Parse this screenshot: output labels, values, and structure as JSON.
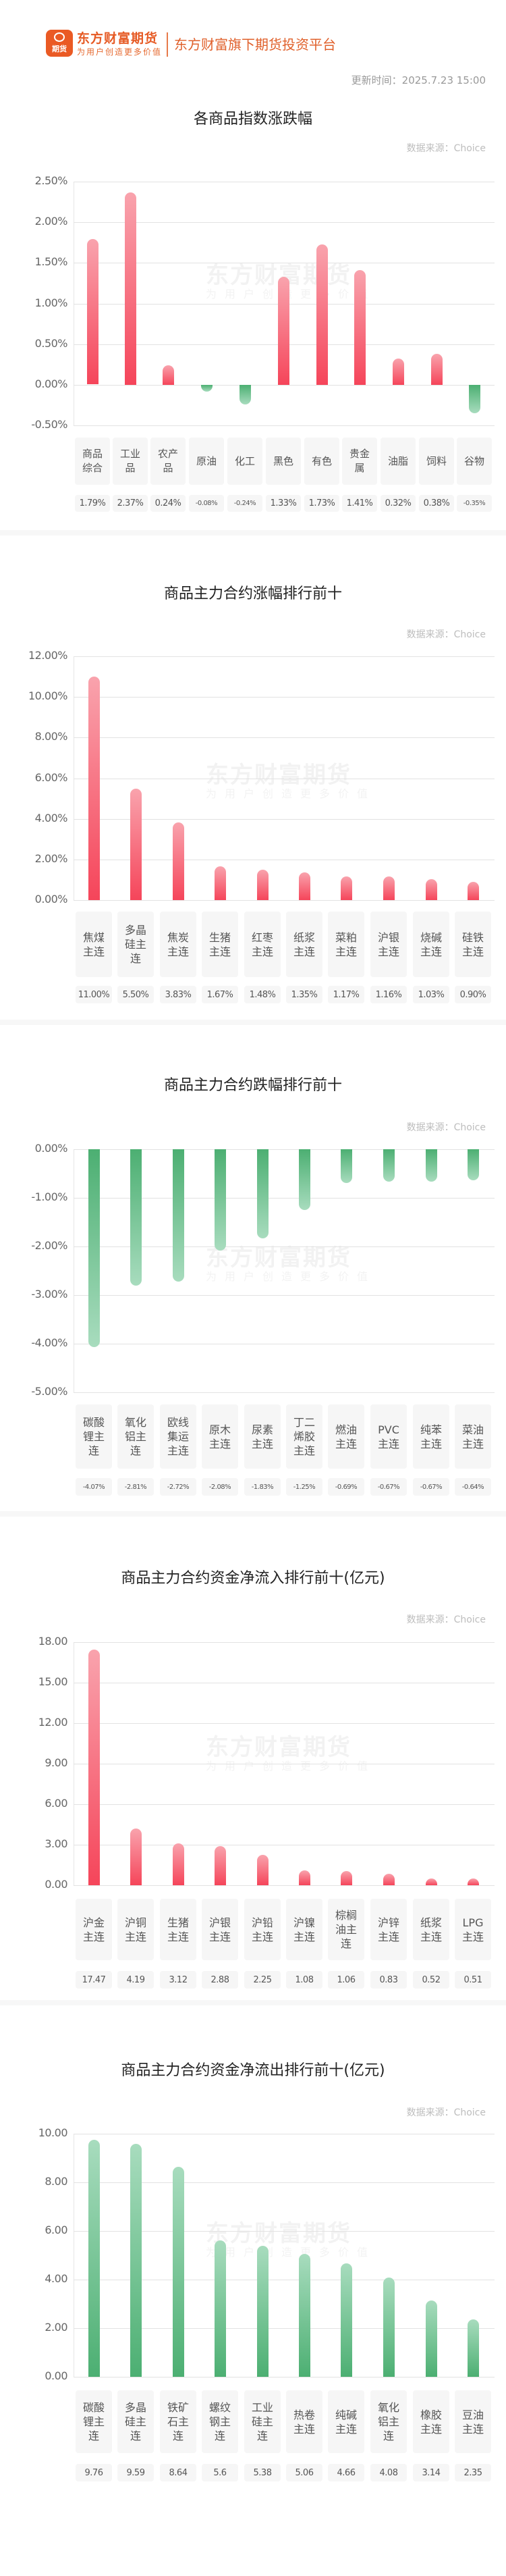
{
  "header": {
    "logo_badge": "期货",
    "brand_name": "东方财富期货",
    "brand_slogan": "为用户创造更多价值",
    "platform_text": "东方财富旗下期货投资平台",
    "update_time": "更新时间：2025.7.23 15:00"
  },
  "watermark": {
    "main": "东方财富期货",
    "sub": "为用户创造更多价值"
  },
  "colors": {
    "up": "#f5455a",
    "down": "#4caf72",
    "brand": "#ea5a24"
  },
  "chart_data": [
    {
      "type": "bar",
      "title": "各商品指数涨跌幅",
      "source": "数据来源：Choice",
      "categories": [
        "商品综合",
        "工业品",
        "农产品",
        "原油",
        "化工",
        "黑色",
        "有色",
        "贵金属",
        "油脂",
        "饲料",
        "谷物"
      ],
      "labels": [
        "商品\n综合",
        "工业\n品",
        "农产\n品",
        "原油",
        "化工",
        "黑色",
        "有色",
        "贵金\n属",
        "油脂",
        "饲料",
        "谷物"
      ],
      "values": [
        1.79,
        2.37,
        0.24,
        -0.08,
        -0.24,
        1.33,
        1.73,
        1.41,
        0.32,
        0.38,
        -0.35
      ],
      "value_labels": [
        "1.79%",
        "2.37%",
        "0.24%",
        "-0.08%",
        "-0.24%",
        "1.33%",
        "1.73%",
        "1.41%",
        "0.32%",
        "0.38%",
        "-0.35%"
      ],
      "yticks": [
        "2.50%",
        "2.00%",
        "1.50%",
        "1.00%",
        "0.50%",
        "0.00%",
        "-0.50%"
      ],
      "ylim": [
        -0.5,
        2.5
      ],
      "ylabel": "",
      "xlabel": "",
      "grid": true,
      "legend": "none"
    },
    {
      "type": "bar",
      "title": "商品主力合约涨幅排行前十",
      "source": "数据来源：Choice",
      "categories": [
        "焦煤主连",
        "多晶硅主连",
        "焦炭主连",
        "生猪主连",
        "红枣主连",
        "纸浆主连",
        "菜粕主连",
        "沪银主连",
        "烧碱主连",
        "硅铁主连"
      ],
      "labels": [
        "焦煤\n主连",
        "多晶\n硅主\n连",
        "焦炭\n主连",
        "生猪\n主连",
        "红枣\n主连",
        "纸浆\n主连",
        "菜粕\n主连",
        "沪银\n主连",
        "烧碱\n主连",
        "硅铁\n主连"
      ],
      "values": [
        11.0,
        5.5,
        3.83,
        1.67,
        1.48,
        1.35,
        1.17,
        1.16,
        1.03,
        0.9
      ],
      "value_labels": [
        "11.00%",
        "5.50%",
        "3.83%",
        "1.67%",
        "1.48%",
        "1.35%",
        "1.17%",
        "1.16%",
        "1.03%",
        "0.90%"
      ],
      "yticks": [
        "12.00%",
        "10.00%",
        "8.00%",
        "6.00%",
        "4.00%",
        "2.00%",
        "0.00%"
      ],
      "ylim": [
        0,
        12
      ],
      "grid": true,
      "legend": "none"
    },
    {
      "type": "bar",
      "title": "商品主力合约跌幅排行前十",
      "source": "数据来源：Choice",
      "categories": [
        "碳酸锂主连",
        "氧化铝主连",
        "欧线集运主连",
        "原木主连",
        "尿素主连",
        "丁二烯胶主连",
        "燃油主连",
        "PVC主连",
        "纯苯主连",
        "菜油主连"
      ],
      "labels": [
        "碳酸\n锂主\n连",
        "氧化\n铝主\n连",
        "欧线\n集运\n主连",
        "原木\n主连",
        "尿素\n主连",
        "丁二\n烯胶\n主连",
        "燃油\n主连",
        "PVC\n主连",
        "纯苯\n主连",
        "菜油\n主连"
      ],
      "values": [
        -4.07,
        -2.81,
        -2.72,
        -2.08,
        -1.83,
        -1.25,
        -0.69,
        -0.67,
        -0.67,
        -0.64
      ],
      "value_labels": [
        "-4.07%",
        "-2.81%",
        "-2.72%",
        "-2.08%",
        "-1.83%",
        "-1.25%",
        "-0.69%",
        "-0.67%",
        "-0.67%",
        "-0.64%"
      ],
      "yticks": [
        "0.00%",
        "-1.00%",
        "-2.00%",
        "-3.00%",
        "-4.00%",
        "-5.00%"
      ],
      "ylim": [
        -5,
        0
      ],
      "grid": true,
      "legend": "none"
    },
    {
      "type": "bar",
      "title": "商品主力合约资金净流入排行前十(亿元)",
      "source": "数据来源：Choice",
      "categories": [
        "沪金主连",
        "沪铜主连",
        "生猪主连",
        "沪银主连",
        "沪铅主连",
        "沪镍主连",
        "棕榈油主连",
        "沪锌主连",
        "纸浆主连",
        "LPG主连"
      ],
      "labels": [
        "沪金\n主连",
        "沪铜\n主连",
        "生猪\n主连",
        "沪银\n主连",
        "沪铅\n主连",
        "沪镍\n主连",
        "棕榈\n油主\n连",
        "沪锌\n主连",
        "纸浆\n主连",
        "LPG\n主连"
      ],
      "values": [
        17.47,
        4.19,
        3.12,
        2.88,
        2.25,
        1.08,
        1.06,
        0.83,
        0.52,
        0.51
      ],
      "value_labels": [
        "17.47",
        "4.19",
        "3.12",
        "2.88",
        "2.25",
        "1.08",
        "1.06",
        "0.83",
        "0.52",
        "0.51"
      ],
      "yticks": [
        "18.00",
        "15.00",
        "12.00",
        "9.00",
        "6.00",
        "3.00",
        "0.00"
      ],
      "ylim": [
        0,
        18
      ],
      "ylabel": "亿元",
      "grid": true,
      "legend": "none"
    },
    {
      "type": "bar",
      "title": "商品主力合约资金净流出排行前十(亿元)",
      "source": "数据来源：Choice",
      "categories": [
        "碳酸锂主连",
        "多晶硅主连",
        "铁矿石主连",
        "螺纹钢主连",
        "工业硅主连",
        "热卷主连",
        "纯碱主连",
        "氧化铝主连",
        "橡胶主连",
        "豆油主连"
      ],
      "labels": [
        "碳酸\n锂主\n连",
        "多晶\n硅主\n连",
        "铁矿\n石主\n连",
        "螺纹\n钢主\n连",
        "工业\n硅主\n连",
        "热卷\n主连",
        "纯碱\n主连",
        "氧化\n铝主\n连",
        "橡胶\n主连",
        "豆油\n主连"
      ],
      "values": [
        9.76,
        9.59,
        8.64,
        5.6,
        5.38,
        5.06,
        4.66,
        4.08,
        3.14,
        2.35
      ],
      "value_labels": [
        "9.76",
        "9.59",
        "8.64",
        "5.6",
        "5.38",
        "5.06",
        "4.66",
        "4.08",
        "3.14",
        "2.35"
      ],
      "yticks": [
        "10.00",
        "8.00",
        "6.00",
        "4.00",
        "2.00",
        "0.00"
      ],
      "ylim": [
        0,
        10
      ],
      "ylabel": "亿元",
      "grid": true,
      "legend": "none"
    }
  ]
}
